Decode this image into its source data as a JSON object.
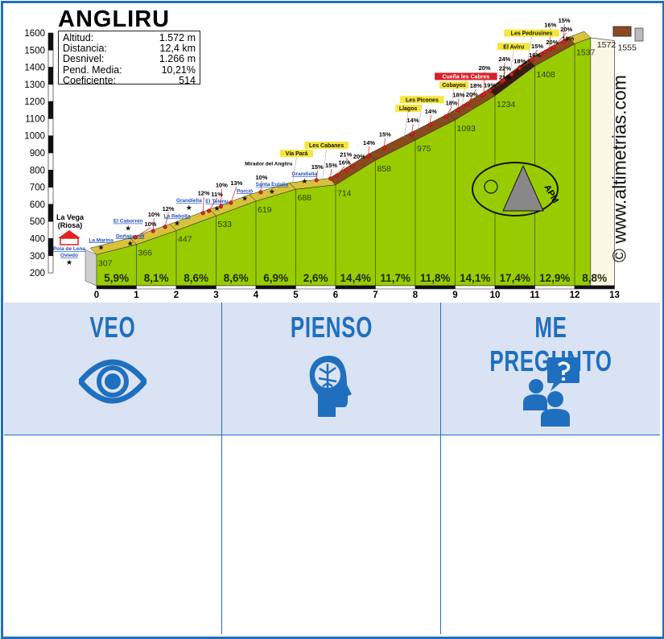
{
  "title": "ANGLIRU",
  "info": [
    {
      "label": "Altitud:",
      "value": "1.572 m"
    },
    {
      "label": "Distancia:",
      "value": "12,4 km"
    },
    {
      "label": "Desnivel:",
      "value": "1.266 m"
    },
    {
      "label": "Pend. Media:",
      "value": "10,21%"
    },
    {
      "label": "Coeficiente:",
      "value": "514"
    }
  ],
  "copyright": "© www.altimetrias.com",
  "logo_text": "APM",
  "colors": {
    "profile": "#99cc00",
    "frame": "#1f6fbf",
    "header_bg": "#dae3f3",
    "label_yellow": "#f5e63a",
    "label_red": "#d6202a"
  },
  "chart_data": {
    "type": "area",
    "xlabel": "",
    "ylabel": "",
    "xlim": [
      0,
      13
    ],
    "ylim": [
      200,
      1600
    ],
    "x_ticks": [
      "0",
      "1",
      "2",
      "3",
      "4",
      "5",
      "6",
      "7",
      "8",
      "9",
      "10",
      "11",
      "12",
      "13"
    ],
    "y_ticks": [
      "200",
      "300",
      "400",
      "500",
      "600",
      "700",
      "800",
      "900",
      "1000",
      "1100",
      "1200",
      "1300",
      "1400",
      "1500",
      "1600"
    ],
    "profile": [
      [
        0,
        307
      ],
      [
        1,
        366
      ],
      [
        2,
        447
      ],
      [
        3,
        533
      ],
      [
        4,
        619
      ],
      [
        5,
        688
      ],
      [
        6,
        714
      ],
      [
        7,
        858
      ],
      [
        8,
        975
      ],
      [
        9,
        1093
      ],
      [
        10,
        1234
      ],
      [
        11,
        1408
      ],
      [
        12,
        1537
      ],
      [
        12.4,
        1572
      ],
      [
        13,
        1555
      ]
    ],
    "altitude_labels": [
      {
        "km": 0,
        "text": "307"
      },
      {
        "km": 1,
        "text": "366"
      },
      {
        "km": 2,
        "text": "447"
      },
      {
        "km": 3,
        "text": "533"
      },
      {
        "km": 4,
        "text": "619"
      },
      {
        "km": 5,
        "text": "688"
      },
      {
        "km": 6,
        "text": "714"
      },
      {
        "km": 7,
        "text": "858"
      },
      {
        "km": 8,
        "text": "975"
      },
      {
        "km": 9,
        "text": "1093"
      },
      {
        "km": 10,
        "text": "1234"
      },
      {
        "km": 11,
        "text": "1408"
      },
      {
        "km": 12,
        "text": "1537"
      },
      {
        "km": 12.4,
        "text": "1572"
      },
      {
        "km": 13,
        "text": "1555"
      }
    ],
    "segment_gradients": [
      "5,9%",
      "8,1%",
      "8,6%",
      "8,6%",
      "6,9%",
      "2,6%",
      "14,4%",
      "11,7%",
      "11,8%",
      "14,1%",
      "17,4%",
      "12,9%",
      "8,8%"
    ],
    "gradient_markers": [
      {
        "km": 1.05,
        "text": "10%"
      },
      {
        "km": 1.5,
        "text": "10%"
      },
      {
        "km": 1.8,
        "text": "12%"
      },
      {
        "km": 2.75,
        "text": "12%"
      },
      {
        "km": 2.9,
        "text": "11%"
      },
      {
        "km": 3.2,
        "text": "10%"
      },
      {
        "km": 3.45,
        "text": "13%"
      },
      {
        "km": 4.2,
        "text": "10%"
      },
      {
        "km": 5.6,
        "text": "15%"
      },
      {
        "km": 5.95,
        "text": "15%"
      },
      {
        "km": 6.1,
        "text": "16%"
      },
      {
        "km": 6.35,
        "text": "20%"
      },
      {
        "km": 6.5,
        "text": "21%"
      },
      {
        "km": 6.9,
        "text": "14%"
      },
      {
        "km": 7.3,
        "text": "15%"
      },
      {
        "km": 8.0,
        "text": "14%"
      },
      {
        "km": 8.45,
        "text": "14%"
      },
      {
        "km": 8.85,
        "text": "18%"
      },
      {
        "km": 9.15,
        "text": "18%"
      },
      {
        "km": 9.3,
        "text": "20%"
      },
      {
        "km": 9.4,
        "text": "18%"
      },
      {
        "km": 9.75,
        "text": "19%"
      },
      {
        "km": 9.8,
        "text": "20%"
      },
      {
        "km": 9.95,
        "text": "21%"
      },
      {
        "km": 10.25,
        "text": "22%"
      },
      {
        "km": 10.3,
        "text": "24%"
      },
      {
        "km": 10.5,
        "text": "18%"
      },
      {
        "km": 10.7,
        "text": "16%"
      },
      {
        "km": 11.0,
        "text": "15%"
      },
      {
        "km": 11.25,
        "text": "20%"
      },
      {
        "km": 11.35,
        "text": "19%"
      },
      {
        "km": 11.45,
        "text": "16%"
      },
      {
        "km": 11.55,
        "text": "20%"
      },
      {
        "km": 11.8,
        "text": "15%"
      }
    ],
    "places": [
      {
        "km": -0.15,
        "text": "La Marina",
        "style": "blue"
      },
      {
        "km": 0.4,
        "text": "Doñajuandi",
        "style": "blue"
      },
      {
        "km": 0.77,
        "text": "El Cabornín",
        "style": "blue"
      },
      {
        "km": 2.0,
        "text": "La Rebolla",
        "style": "blue"
      },
      {
        "km": 2.3,
        "text": "Grandiella",
        "style": "blue"
      },
      {
        "km": 3.0,
        "text": "El Telenu",
        "style": "blue"
      },
      {
        "km": 3.7,
        "text": "Porció",
        "style": "blue"
      },
      {
        "km": 4.2,
        "text": "Santa Eulalia",
        "style": "blue"
      },
      {
        "km": 4.3,
        "text": "Mirador del Angliru",
        "style": "plain"
      },
      {
        "km": 5.0,
        "text": "Vía Pará",
        "style": "yellow"
      },
      {
        "km": 5.2,
        "text": "Grandiella",
        "style": "blue"
      },
      {
        "km": 5.75,
        "text": "Les Cabanes",
        "style": "yellow"
      },
      {
        "km": 7.8,
        "text": "Llagos",
        "style": "yellow"
      },
      {
        "km": 8.15,
        "text": "Les Picones",
        "style": "yellow"
      },
      {
        "km": 8.95,
        "text": "Cobayos",
        "style": "yellow"
      },
      {
        "km": 9.25,
        "text": "Cueña les Cabres",
        "style": "red"
      },
      {
        "km": 10.45,
        "text": "El Aviru",
        "style": "yellow"
      },
      {
        "km": 10.9,
        "text": "Les Pedrusines",
        "style": "yellow"
      }
    ],
    "start_labels": {
      "town": "La Vega",
      "town_sub": "(Riosa)",
      "sign1": "Pola de Lena",
      "sign2": "Oviedo"
    }
  },
  "worksheet": {
    "columns": [
      {
        "title": "VEO",
        "icon": "eye-icon"
      },
      {
        "title": "PIENSO",
        "icon": "head-brain-icon"
      },
      {
        "title": "ME PREGUNTO",
        "icon": "people-question-icon"
      }
    ]
  }
}
